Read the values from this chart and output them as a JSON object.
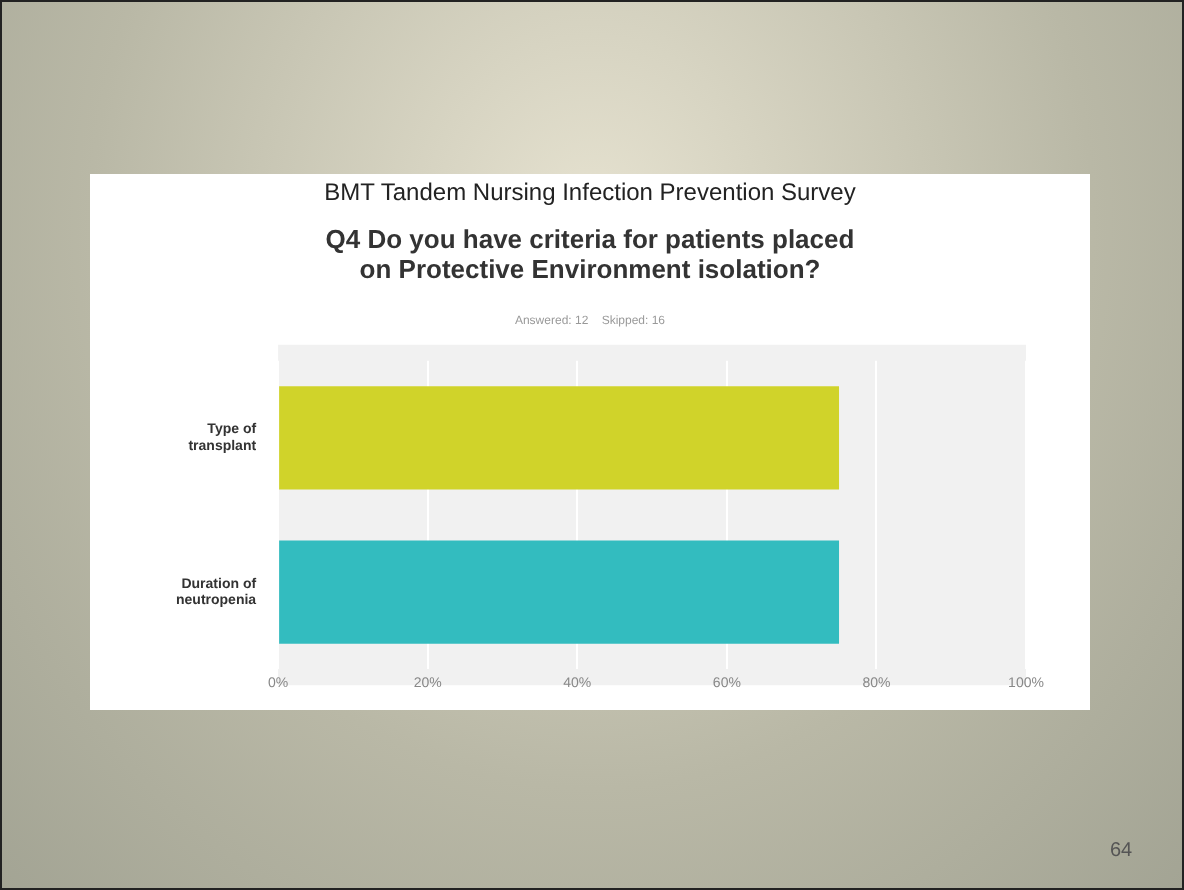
{
  "chart_data": {
    "type": "bar",
    "orientation": "horizontal",
    "title": "BMT Tandem Nursing Infection Prevention Survey",
    "subtitle": "Q4 Do you have criteria for patients placed on Protective Environment isolation?",
    "annotations": [
      "Answered: 12    Skipped: 16",
      "64"
    ],
    "categories": [
      "Type of transplant",
      "Duration of neutropenia"
    ],
    "values": [
      75,
      75
    ],
    "colors": [
      "#d0d32a",
      "#33bcbf"
    ],
    "xlim": [
      0,
      100
    ],
    "xticks": [
      {
        "value": 0,
        "label": "0%"
      },
      {
        "value": 20,
        "label": "20%"
      },
      {
        "value": 40,
        "label": "40%"
      },
      {
        "value": 60,
        "label": "60%"
      },
      {
        "value": 80,
        "label": "80%"
      },
      {
        "value": 100,
        "label": "100%"
      }
    ],
    "grid": "x"
  }
}
